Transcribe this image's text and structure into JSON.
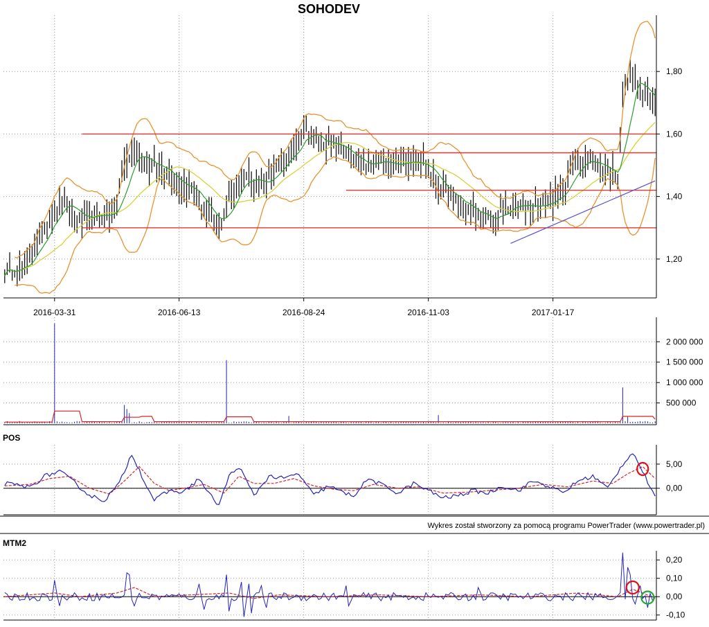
{
  "chart_data": [
    {
      "panel": "price",
      "type": "ohlc",
      "title": "SOHODEV",
      "x_ticks": [
        "2016-03-31",
        "2016-06-13",
        "2016-08-24",
        "2016-11-03",
        "2017-01-17"
      ],
      "x_tick_index": [
        20,
        70,
        120,
        170,
        220
      ],
      "n_bars": 262,
      "ylim": [
        1.08,
        1.98
      ],
      "y_ticks": [
        1.2,
        1.4,
        1.6,
        1.8
      ],
      "y_tick_labels": [
        "1,20",
        "1,40",
        "1,60",
        "1,80"
      ],
      "grid": true,
      "close_anchors": [
        [
          0,
          1.16
        ],
        [
          8,
          1.18
        ],
        [
          14,
          1.27
        ],
        [
          20,
          1.36
        ],
        [
          24,
          1.38
        ],
        [
          30,
          1.32
        ],
        [
          38,
          1.34
        ],
        [
          44,
          1.35
        ],
        [
          48,
          1.5
        ],
        [
          52,
          1.55
        ],
        [
          58,
          1.5
        ],
        [
          64,
          1.49
        ],
        [
          70,
          1.44
        ],
        [
          76,
          1.42
        ],
        [
          80,
          1.35
        ],
        [
          86,
          1.3
        ],
        [
          90,
          1.4
        ],
        [
          96,
          1.47
        ],
        [
          104,
          1.44
        ],
        [
          110,
          1.5
        ],
        [
          116,
          1.55
        ],
        [
          120,
          1.63
        ],
        [
          124,
          1.58
        ],
        [
          130,
          1.57
        ],
        [
          136,
          1.55
        ],
        [
          140,
          1.51
        ],
        [
          146,
          1.49
        ],
        [
          150,
          1.52
        ],
        [
          156,
          1.5
        ],
        [
          162,
          1.52
        ],
        [
          168,
          1.51
        ],
        [
          174,
          1.43
        ],
        [
          180,
          1.39
        ],
        [
          186,
          1.36
        ],
        [
          192,
          1.33
        ],
        [
          196,
          1.32
        ],
        [
          200,
          1.36
        ],
        [
          206,
          1.37
        ],
        [
          212,
          1.37
        ],
        [
          218,
          1.38
        ],
        [
          222,
          1.4
        ],
        [
          226,
          1.46
        ],
        [
          230,
          1.52
        ],
        [
          236,
          1.51
        ],
        [
          240,
          1.49
        ],
        [
          246,
          1.47
        ],
        [
          248,
          1.74
        ],
        [
          252,
          1.79
        ],
        [
          256,
          1.72
        ],
        [
          261,
          1.7
        ]
      ],
      "support_resistance": [
        {
          "value": 1.6,
          "from": 31,
          "to": 261
        },
        {
          "value": 1.54,
          "from": 141,
          "to": 261
        },
        {
          "value": 1.42,
          "from": 137,
          "to": 261
        },
        {
          "value": 1.3,
          "from": 31,
          "to": 261
        }
      ],
      "trend_line": {
        "from": [
          203,
          1.25
        ],
        "to": [
          261,
          1.45
        ]
      },
      "overlays": [
        "bollinger-bands",
        "moving-average-short",
        "moving-average-long"
      ]
    },
    {
      "panel": "volume",
      "type": "bar",
      "ylim": [
        0,
        2600000
      ],
      "y_ticks": [
        500000,
        1000000,
        1500000,
        2000000
      ],
      "y_tick_labels": [
        "500 000",
        "1 000 000",
        "1 500 000",
        "2 000 000"
      ],
      "spikes": [
        [
          20,
          2450000
        ],
        [
          48,
          450000
        ],
        [
          49,
          350000
        ],
        [
          50,
          250000
        ],
        [
          89,
          1550000
        ],
        [
          114,
          180000
        ],
        [
          174,
          200000
        ],
        [
          248,
          880000
        ],
        [
          250,
          160000
        ]
      ],
      "volume_ma_steps": [
        [
          20,
          300000
        ],
        [
          31,
          40000
        ],
        [
          48,
          150000
        ],
        [
          55,
          170000
        ],
        [
          60,
          40000
        ],
        [
          89,
          160000
        ],
        [
          100,
          40000
        ],
        [
          172,
          40000
        ],
        [
          248,
          170000
        ],
        [
          261,
          100000
        ]
      ]
    },
    {
      "panel": "POS",
      "type": "line",
      "title": "POS",
      "ylim": [
        -5.2,
        9.0
      ],
      "y_ticks": [
        0,
        5
      ],
      "y_tick_labels": [
        "0,00",
        "5,00"
      ],
      "anchors": [
        [
          0,
          1.0
        ],
        [
          10,
          0.2
        ],
        [
          16,
          2.5
        ],
        [
          22,
          3.5
        ],
        [
          28,
          1.2
        ],
        [
          34,
          -1.5
        ],
        [
          40,
          -2.5
        ],
        [
          46,
          1.0
        ],
        [
          51,
          7.2
        ],
        [
          56,
          1.5
        ],
        [
          60,
          -2.5
        ],
        [
          66,
          -0.5
        ],
        [
          72,
          -0.8
        ],
        [
          78,
          2.0
        ],
        [
          82,
          -1.2
        ],
        [
          86,
          -3.5
        ],
        [
          90,
          2.5
        ],
        [
          94,
          4.5
        ],
        [
          100,
          -1.5
        ],
        [
          106,
          2.5
        ],
        [
          112,
          2.0
        ],
        [
          118,
          3.0
        ],
        [
          124,
          -1.5
        ],
        [
          130,
          0.5
        ],
        [
          136,
          -1.0
        ],
        [
          140,
          -1.5
        ],
        [
          146,
          2.0
        ],
        [
          152,
          0.5
        ],
        [
          158,
          -1.0
        ],
        [
          164,
          1.0
        ],
        [
          170,
          -0.5
        ],
        [
          176,
          -2.0
        ],
        [
          182,
          -1.5
        ],
        [
          188,
          -0.5
        ],
        [
          194,
          -1.0
        ],
        [
          200,
          0.5
        ],
        [
          206,
          -0.5
        ],
        [
          212,
          1.5
        ],
        [
          218,
          0.5
        ],
        [
          224,
          -1.0
        ],
        [
          230,
          1.5
        ],
        [
          236,
          2.5
        ],
        [
          242,
          0.0
        ],
        [
          248,
          5.0
        ],
        [
          252,
          7.5
        ],
        [
          256,
          3.5
        ],
        [
          261,
          -2.0
        ]
      ],
      "signal_anchors": [
        [
          0,
          0.5
        ],
        [
          10,
          0.8
        ],
        [
          18,
          2.0
        ],
        [
          26,
          2.5
        ],
        [
          34,
          0.0
        ],
        [
          42,
          -1.2
        ],
        [
          48,
          1.5
        ],
        [
          54,
          4.5
        ],
        [
          60,
          1.0
        ],
        [
          66,
          -0.5
        ],
        [
          74,
          0.2
        ],
        [
          80,
          0.8
        ],
        [
          88,
          -1.0
        ],
        [
          94,
          2.5
        ],
        [
          100,
          1.0
        ],
        [
          108,
          1.0
        ],
        [
          116,
          2.0
        ],
        [
          124,
          0.5
        ],
        [
          132,
          -0.2
        ],
        [
          140,
          -0.5
        ],
        [
          148,
          0.8
        ],
        [
          158,
          0.0
        ],
        [
          166,
          0.3
        ],
        [
          176,
          -1.0
        ],
        [
          186,
          -0.8
        ],
        [
          196,
          -0.4
        ],
        [
          206,
          0.0
        ],
        [
          216,
          0.8
        ],
        [
          226,
          0.3
        ],
        [
          236,
          1.5
        ],
        [
          244,
          1.0
        ],
        [
          250,
          3.0
        ],
        [
          256,
          4.5
        ],
        [
          261,
          2.0
        ]
      ],
      "annotation_circles": [
        {
          "index": 256,
          "value": 4.0,
          "color": "#dd1111"
        }
      ]
    },
    {
      "panel": "MTM2",
      "type": "line",
      "title": "MTM2",
      "ylim": [
        -0.12,
        0.25
      ],
      "y_ticks": [
        -0.1,
        0,
        0.1,
        0.2
      ],
      "y_tick_labels": [
        "-0,10",
        "0,00",
        "0,10",
        "0,20"
      ],
      "spikes": [
        [
          20,
          0.09
        ],
        [
          22,
          -0.05
        ],
        [
          49,
          0.13
        ],
        [
          50,
          0.12
        ],
        [
          52,
          -0.05
        ],
        [
          78,
          0.07
        ],
        [
          80,
          -0.07
        ],
        [
          89,
          0.12
        ],
        [
          90,
          -0.08
        ],
        [
          95,
          0.08
        ],
        [
          96,
          -0.11
        ],
        [
          98,
          0.07
        ],
        [
          99,
          -0.09
        ],
        [
          103,
          0.06
        ],
        [
          105,
          -0.06
        ],
        [
          137,
          0.06
        ],
        [
          138,
          -0.05
        ],
        [
          190,
          0.05
        ],
        [
          248,
          0.24
        ],
        [
          250,
          0.16
        ],
        [
          251,
          0.12
        ],
        [
          253,
          -0.04
        ],
        [
          255,
          0.06
        ],
        [
          258,
          -0.06
        ]
      ],
      "signal_anchors": [
        [
          0,
          0.0
        ],
        [
          10,
          0.01
        ],
        [
          20,
          0.02
        ],
        [
          30,
          0.0
        ],
        [
          45,
          0.02
        ],
        [
          52,
          0.05
        ],
        [
          60,
          0.0
        ],
        [
          75,
          0.01
        ],
        [
          90,
          0.02
        ],
        [
          100,
          -0.01
        ],
        [
          110,
          0.01
        ],
        [
          130,
          0.0
        ],
        [
          150,
          0.01
        ],
        [
          170,
          0.0
        ],
        [
          190,
          0.01
        ],
        [
          210,
          0.0
        ],
        [
          230,
          0.02
        ],
        [
          246,
          0.0
        ],
        [
          252,
          0.04
        ],
        [
          256,
          0.02
        ],
        [
          261,
          -0.01
        ]
      ],
      "annotation_circles": [
        {
          "index": 252,
          "value": 0.05,
          "color": "#dd1111"
        },
        {
          "index": 258,
          "value": -0.005,
          "color": "#22aa33"
        }
      ]
    }
  ],
  "footer": {
    "credit": "Wykres został stworzony za pomocą programu PowerTrader (www.powertrader.pl)"
  },
  "colors": {
    "ohlc_bar": "#000000",
    "bollinger": "#e8932e",
    "ma_short": "#2a9d2a",
    "ma_long": "#d6d23c",
    "support_line": "#e83333",
    "trend_line": "#5555cc",
    "volume_bar": "#2222aa",
    "indicator_line": "#2222bb",
    "signal_line": "#dd2222",
    "grid": "#9a9a9a"
  }
}
